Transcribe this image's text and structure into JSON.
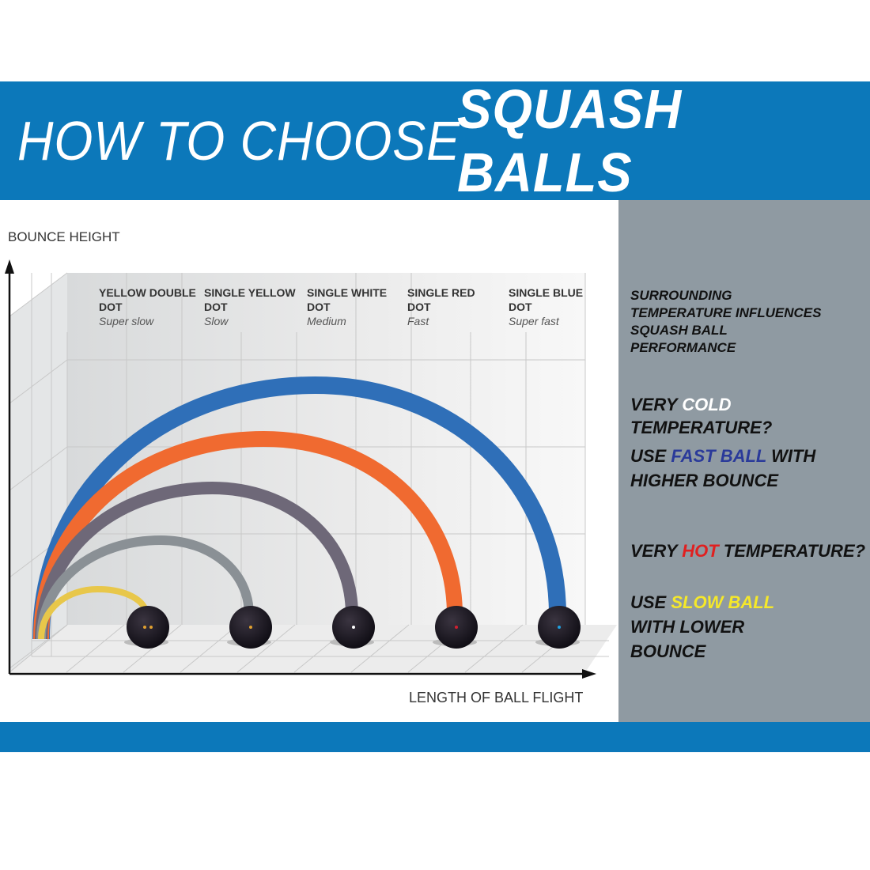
{
  "title": {
    "light": "HOW TO CHOOSE",
    "bold": "SQUASH BALLS"
  },
  "axes": {
    "y_label": "BOUNCE HEIGHT",
    "x_label": "LENGTH OF BALL FLIGHT"
  },
  "balls": [
    {
      "name_line1": "YELLOW DOUBLE",
      "name_line2": "DOT",
      "speed": "Super slow",
      "arc_color": "#e8c74a",
      "dot_color": "#e0a030",
      "dots": 2
    },
    {
      "name_line1": "SINGLE YELLOW",
      "name_line2": "DOT",
      "speed": "Slow",
      "arc_color": "#8a9095",
      "dot_color": "#e0a030",
      "dots": 1
    },
    {
      "name_line1": "SINGLE WHITE",
      "name_line2": "DOT",
      "speed": "Medium",
      "arc_color": "#6e6878",
      "dot_color": "#ffffff",
      "dots": 1
    },
    {
      "name_line1": "SINGLE RED",
      "name_line2": "DOT",
      "speed": "Fast",
      "arc_color": "#f06a30",
      "dot_color": "#d02030",
      "dots": 1
    },
    {
      "name_line1": "SINGLE BLUE",
      "name_line2": "DOT",
      "speed": "Super fast",
      "arc_color": "#2f6fb8",
      "dot_color": "#20a0e0",
      "dots": 1
    }
  ],
  "side": {
    "intro": "SURROUNDING TEMPERATURE INFLUENCES SQUASH BALL PERFORMANCE",
    "cold_q": {
      "pre": "VERY ",
      "hl": "COLD",
      "post": " TEMPERATURE?",
      "hl_color": "#ffffff"
    },
    "cold_a": {
      "pre": "USE ",
      "hl": "FAST BALL",
      "post": " WITH HIGHER BOUNCE",
      "hl_color": "#2a3a9a"
    },
    "hot_q": {
      "pre": "VERY ",
      "hl": "HOT",
      "post": " TEMPERATURE?",
      "hl_color": "#e02020"
    },
    "hot_a": {
      "pre": "USE ",
      "hl": "SLOW BALL",
      "post": " WITH LOWER BOUNCE",
      "hl_color": "#f5e82a"
    }
  },
  "colors": {
    "brand_blue": "#0c78ba",
    "side_panel": "#8f9aa2"
  }
}
